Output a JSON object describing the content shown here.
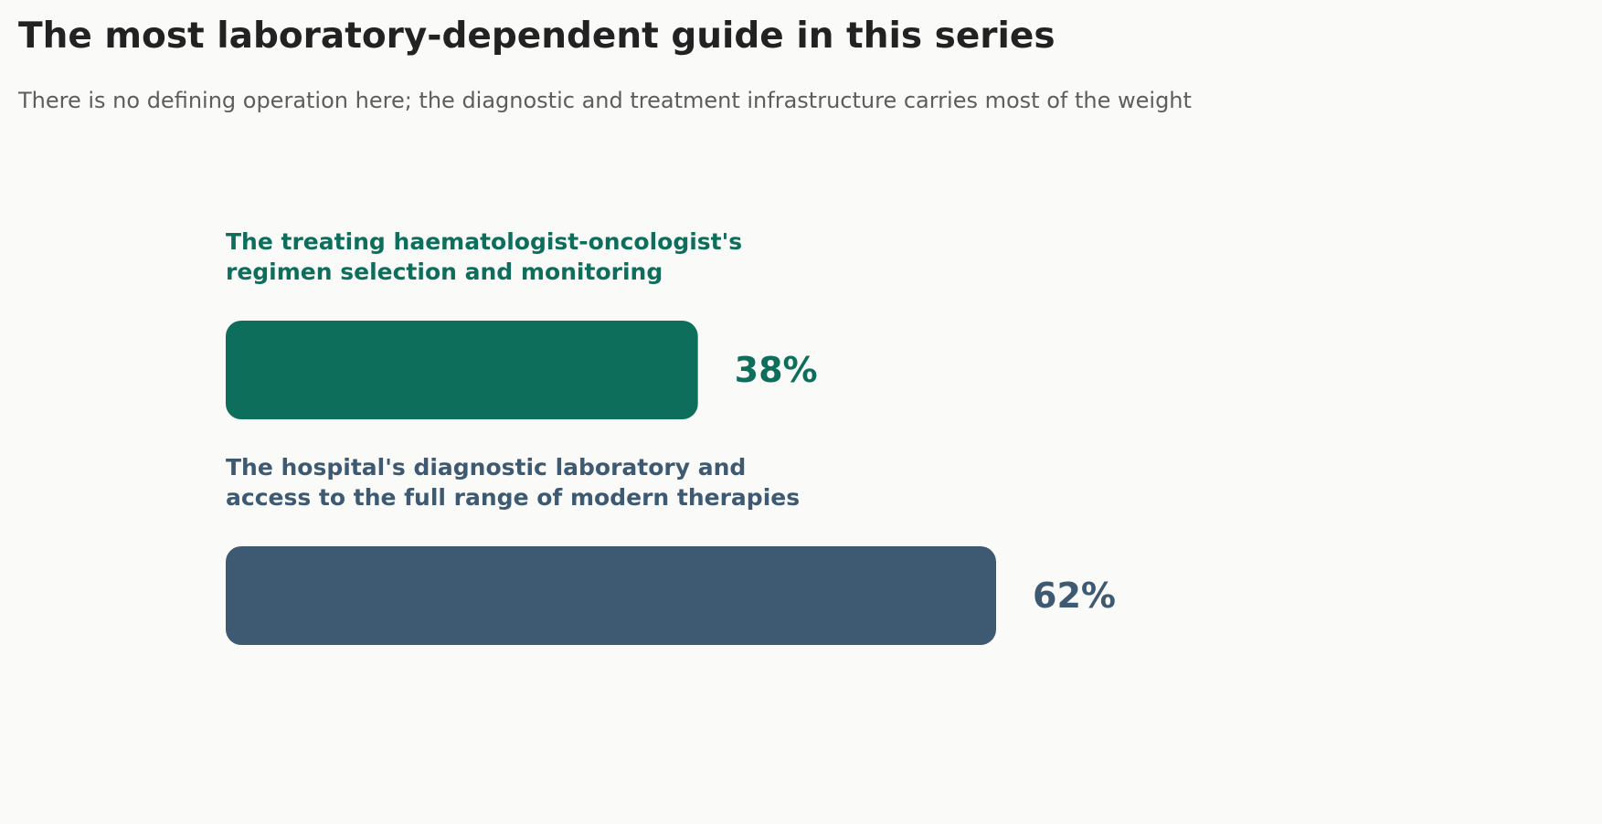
{
  "header": {
    "title": "The most laboratory-dependent guide in this series",
    "subtitle": "There is no defining operation here; the diagnostic and treatment infrastructure carries most of the weight"
  },
  "chart_data": {
    "type": "bar",
    "orientation": "horizontal",
    "categories": [
      [
        "The treating haematologist-oncologist's",
        "regimen selection and monitoring"
      ],
      [
        "The hospital's diagnostic laboratory and",
        "access to the full range of modern therapies"
      ]
    ],
    "values": [
      38,
      62
    ],
    "value_labels": [
      "38%",
      "62%"
    ],
    "unit": "%",
    "colors": [
      "#0e6e5c",
      "#3d5a72"
    ],
    "xlim": [
      0,
      100
    ],
    "grid": false,
    "legend": "none"
  }
}
